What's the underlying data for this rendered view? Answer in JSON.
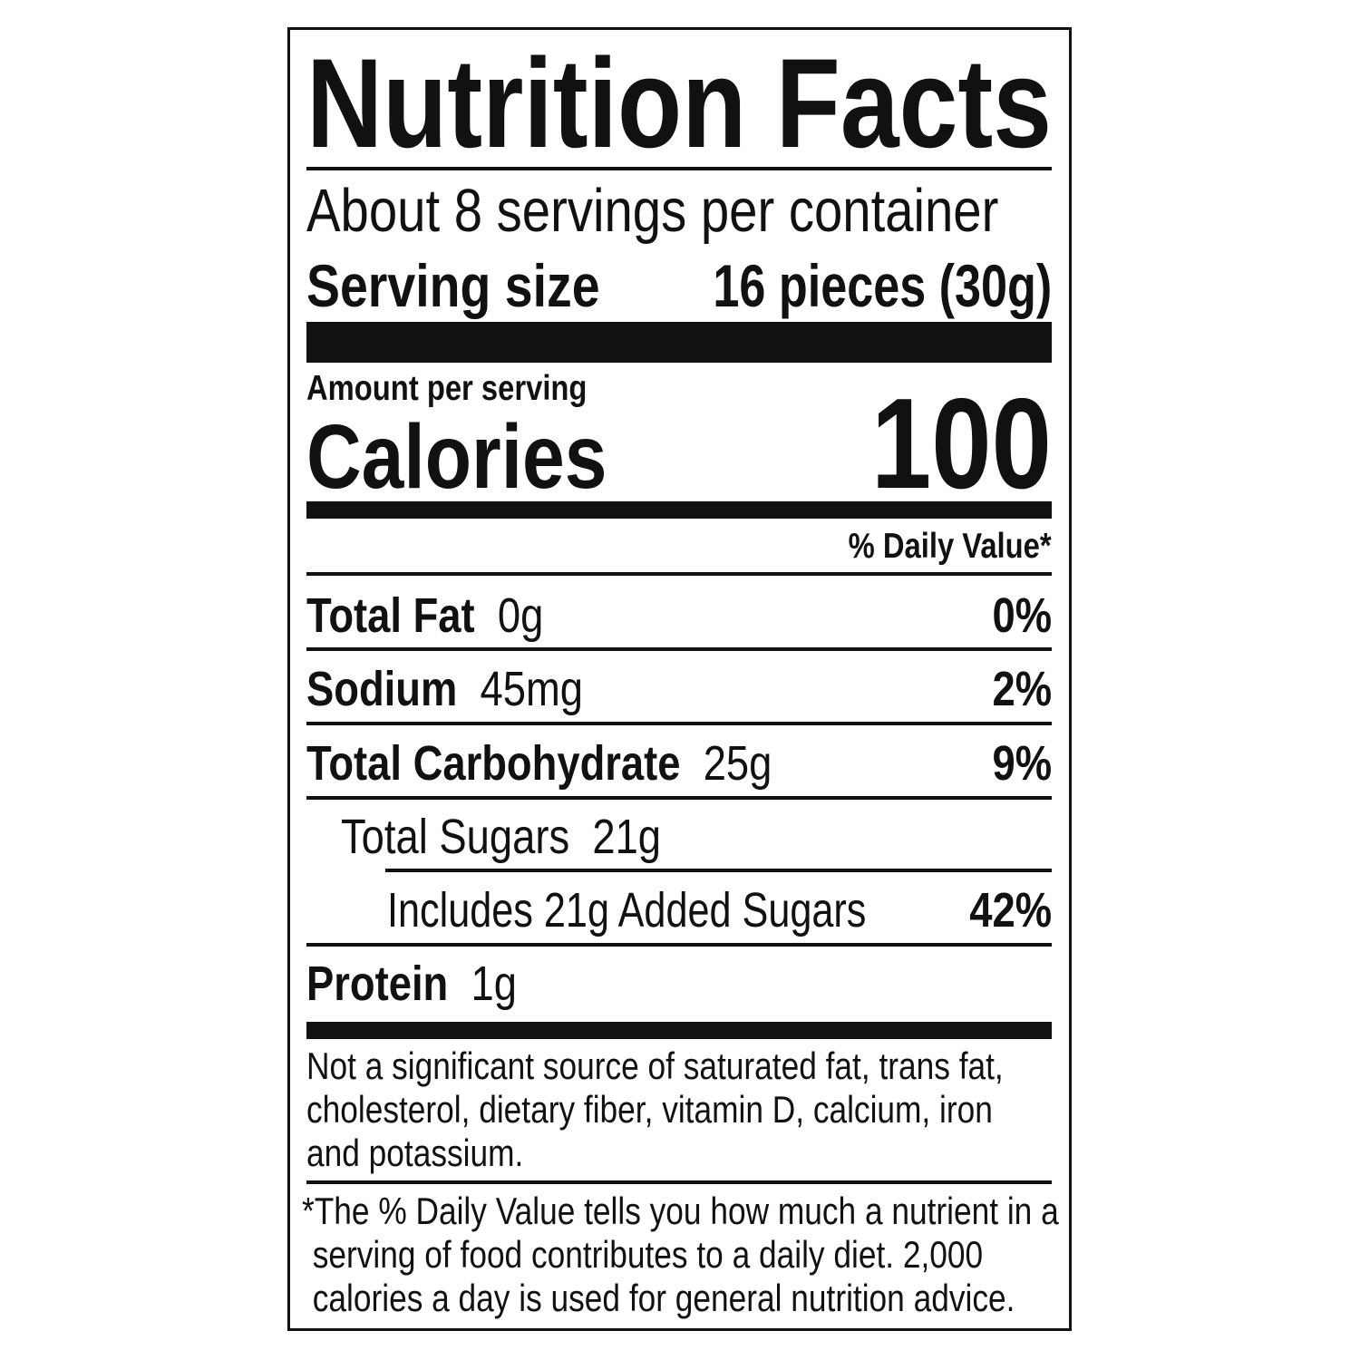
{
  "title": "Nutrition Facts",
  "servings_per_container": "About 8 servings per container",
  "serving_size": {
    "label": "Serving size",
    "value": "16 pieces (30g)"
  },
  "amount_per_serving": "Amount per serving",
  "calories": {
    "label": "Calories",
    "value": "100"
  },
  "daily_value_header": "% Daily Value*",
  "nutrients": [
    {
      "name": "Total Fat",
      "amount": "0g",
      "dv": "0%"
    },
    {
      "name": "Sodium",
      "amount": "45mg",
      "dv": "2%"
    },
    {
      "name": "Total Carbohydrate",
      "amount": "25g",
      "dv": "9%"
    },
    {
      "name": "Total Sugars",
      "amount": "21g",
      "dv": ""
    },
    {
      "name": "Includes 21g Added Sugars",
      "amount": "",
      "dv": "42%"
    },
    {
      "name": "Protein",
      "amount": "1g",
      "dv": ""
    }
  ],
  "not_significant": [
    "Not a significant source of saturated fat, trans fat,",
    "cholesterol, dietary fiber, vitamin D, calcium, iron",
    "and potassium."
  ],
  "footnote": [
    "*The % Daily Value tells you how much a nutrient in a",
    "serving of food contributes to a daily diet. 2,000",
    "calories a day is used for general nutrition advice."
  ]
}
